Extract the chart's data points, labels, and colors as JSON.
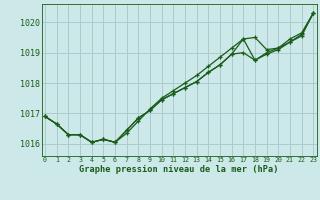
{
  "title": "Graphe pression niveau de la mer (hPa)",
  "background_color": "#cce8e8",
  "grid_color": "#aacccc",
  "line_color": "#1a5c1a",
  "ylim": [
    1015.6,
    1020.6
  ],
  "xlim": [
    -0.3,
    23.3
  ],
  "yticks": [
    1016,
    1017,
    1018,
    1019,
    1020
  ],
  "xticks": [
    0,
    1,
    2,
    3,
    4,
    5,
    6,
    7,
    8,
    9,
    10,
    11,
    12,
    13,
    14,
    15,
    16,
    17,
    18,
    19,
    20,
    21,
    22,
    23
  ],
  "series1": [
    1016.9,
    1016.65,
    1016.3,
    1016.3,
    1016.05,
    1016.15,
    1016.05,
    1016.45,
    1016.85,
    1017.1,
    1017.45,
    1017.65,
    1017.85,
    1018.05,
    1018.35,
    1018.6,
    1018.95,
    1019.45,
    1019.5,
    1019.1,
    1019.15,
    1019.45,
    1019.65,
    1020.3
  ],
  "series2": [
    1016.9,
    1016.65,
    1016.3,
    1016.3,
    1016.05,
    1016.15,
    1016.05,
    1016.45,
    1016.85,
    1017.1,
    1017.45,
    1017.65,
    1017.85,
    1018.05,
    1018.35,
    1018.6,
    1018.95,
    1019.0,
    1018.75,
    1019.0,
    1019.15,
    1019.35,
    1019.55,
    1020.3
  ],
  "series3": [
    1016.9,
    1016.65,
    1016.3,
    1016.3,
    1016.05,
    1016.15,
    1016.05,
    1016.35,
    1016.75,
    1017.15,
    1017.5,
    1017.75,
    1018.0,
    1018.25,
    1018.55,
    1018.85,
    1019.15,
    1019.45,
    1018.75,
    1018.95,
    1019.1,
    1019.35,
    1019.6,
    1020.3
  ]
}
